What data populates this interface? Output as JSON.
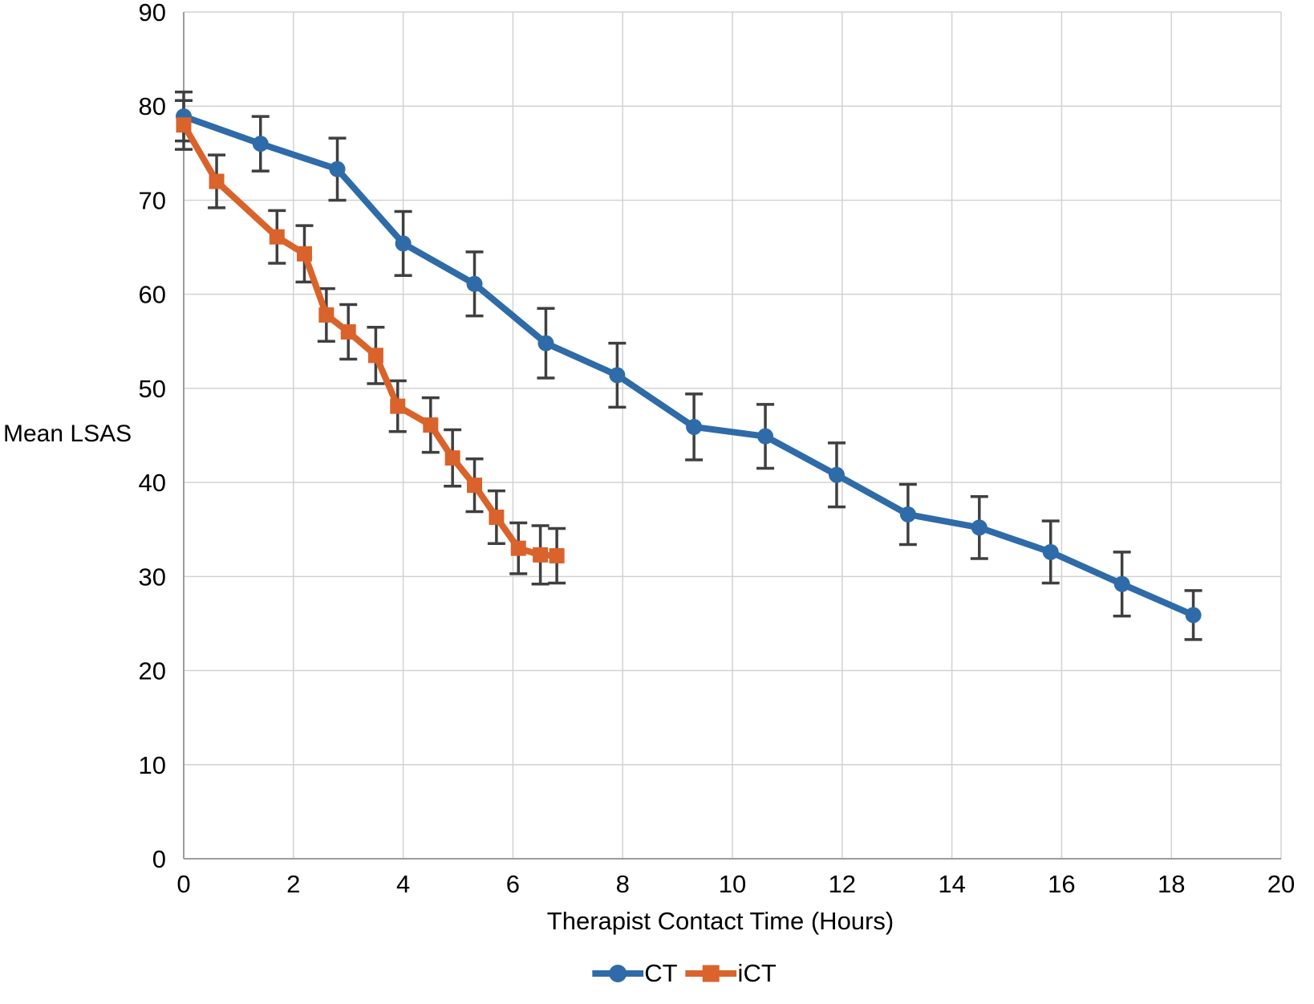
{
  "chart_data": {
    "type": "line",
    "title": "",
    "xlabel": "Therapist Contact Time (Hours)",
    "ylabel": "Mean LSAS",
    "xlim": [
      0,
      20
    ],
    "ylim": [
      0,
      90
    ],
    "x_ticks": [
      0,
      2,
      4,
      6,
      8,
      10,
      12,
      14,
      16,
      18,
      20
    ],
    "y_ticks": [
      0,
      10,
      20,
      30,
      40,
      50,
      60,
      70,
      80,
      90
    ],
    "grid": true,
    "legend_position": "bottom-center",
    "gridline_color": "#D2D2D2",
    "axis_line_color": "#9C9C9C",
    "error_bar_color": "#3F3F3F",
    "series": [
      {
        "name": "CT",
        "color": "#2E6BA8",
        "marker": "circle",
        "x": [
          0,
          1.4,
          2.8,
          4.0,
          5.3,
          6.6,
          7.9,
          9.3,
          10.6,
          11.9,
          13.2,
          14.5,
          15.8,
          17.1,
          18.4
        ],
        "y": [
          78.9,
          76.0,
          73.3,
          65.4,
          61.1,
          54.8,
          51.4,
          45.9,
          44.9,
          40.8,
          36.6,
          35.2,
          32.6,
          29.2,
          25.9
        ],
        "error": [
          2.6,
          2.9,
          3.3,
          3.4,
          3.4,
          3.7,
          3.4,
          3.5,
          3.4,
          3.4,
          3.2,
          3.3,
          3.3,
          3.4,
          2.6
        ]
      },
      {
        "name": "iCT",
        "color": "#D9632B",
        "marker": "square",
        "x": [
          0,
          0.6,
          1.7,
          2.2,
          2.6,
          3.0,
          3.5,
          3.9,
          4.5,
          4.9,
          5.3,
          5.7,
          6.1,
          6.5,
          6.8
        ],
        "y": [
          78.0,
          72.0,
          66.1,
          64.3,
          57.8,
          56.0,
          53.5,
          48.1,
          46.1,
          42.6,
          39.7,
          36.3,
          33.0,
          32.3,
          32.2
        ],
        "error": [
          2.6,
          2.8,
          2.8,
          3.0,
          2.8,
          2.9,
          3.0,
          2.7,
          2.9,
          3.0,
          2.8,
          2.8,
          2.7,
          3.1,
          2.9
        ]
      }
    ]
  }
}
